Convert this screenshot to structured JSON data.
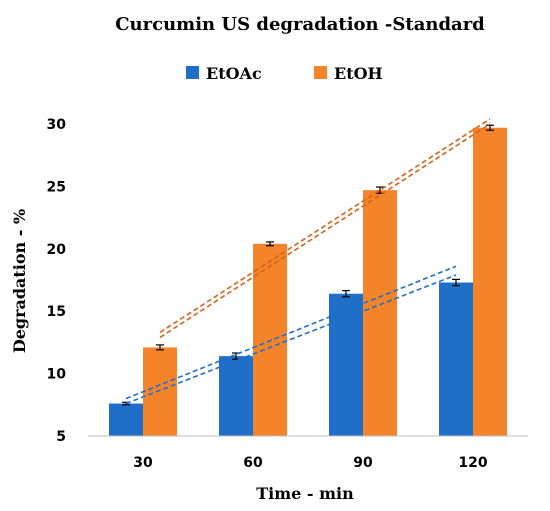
{
  "chart_data": {
    "type": "bar",
    "title": "Curcumin US degradation -Standard",
    "xlabel": "Time - min",
    "ylabel": "Degradation - %",
    "categories": [
      "30",
      "60",
      "90",
      "120"
    ],
    "ylim": [
      5,
      30
    ],
    "yticks": [
      "5",
      "10",
      "15",
      "20",
      "25",
      "30"
    ],
    "legend_position": "top",
    "grid": false,
    "series": [
      {
        "name": "EtOAc",
        "color": "#1f6fc9",
        "values": [
          7.6,
          11.4,
          16.4,
          17.3
        ],
        "errors": [
          0.1,
          0.25,
          0.25,
          0.25
        ],
        "trendlines": [
          [
            7.6,
            17.9
          ],
          [
            8.0,
            18.6
          ]
        ],
        "trend_color": "#1f6fc9"
      },
      {
        "name": "EtOH",
        "color": "#f5832a",
        "values": [
          12.1,
          20.4,
          24.7,
          29.7
        ],
        "errors": [
          0.2,
          0.15,
          0.25,
          0.2
        ],
        "trendlines": [
          [
            12.9,
            30.0
          ],
          [
            13.3,
            30.4
          ]
        ],
        "trend_color": "#d4621b"
      }
    ]
  }
}
